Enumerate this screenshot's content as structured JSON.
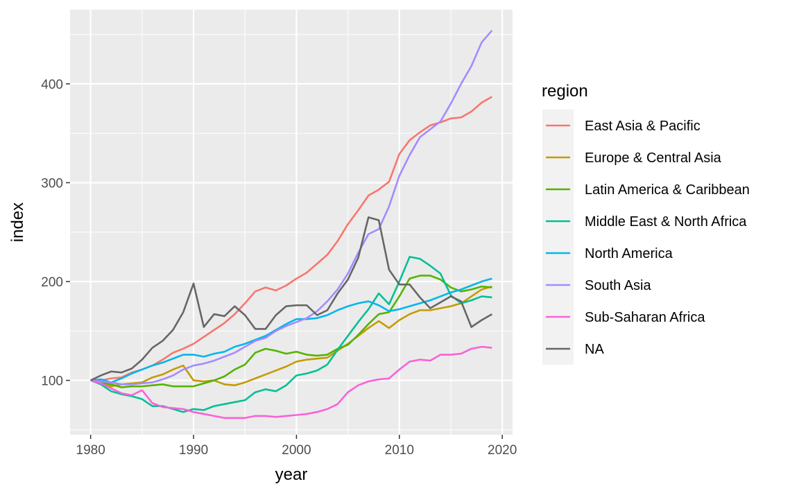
{
  "chart_data": {
    "type": "line",
    "xlabel": "year",
    "ylabel": "index",
    "xlim": [
      1978,
      2021
    ],
    "ylim": [
      45,
      475
    ],
    "x_ticks": [
      1980,
      1990,
      2000,
      2010,
      2020
    ],
    "y_ticks": [
      100,
      200,
      300,
      400
    ],
    "grid": true,
    "legend_title": "region",
    "legend_position": "right",
    "years": [
      1980,
      1981,
      1982,
      1983,
      1984,
      1985,
      1986,
      1987,
      1988,
      1989,
      1990,
      1991,
      1992,
      1993,
      1994,
      1995,
      1996,
      1997,
      1998,
      1999,
      2000,
      2001,
      2002,
      2003,
      2004,
      2005,
      2006,
      2007,
      2008,
      2009,
      2010,
      2011,
      2012,
      2013,
      2014,
      2015,
      2016,
      2017,
      2018,
      2019
    ],
    "series": [
      {
        "name": "East Asia & Pacific",
        "color": "#F8766D",
        "values": [
          100,
          100,
          102,
          103,
          108,
          111,
          115,
          121,
          128,
          132,
          137,
          144,
          151,
          158,
          167,
          178,
          190,
          194,
          191,
          196,
          203,
          209,
          218,
          227,
          241,
          258,
          272,
          287,
          293,
          301,
          329,
          343,
          351,
          358,
          361,
          365,
          366,
          372,
          381,
          387
        ]
      },
      {
        "name": "Europe & Central Asia",
        "color": "#C49A00",
        "values": [
          100,
          98,
          94,
          96,
          97,
          98,
          103,
          106,
          111,
          115,
          100,
          99,
          100,
          96,
          95,
          98,
          102,
          106,
          110,
          114,
          119,
          121,
          122,
          123,
          130,
          137,
          145,
          153,
          160,
          153,
          161,
          167,
          171,
          171,
          173,
          175,
          178,
          185,
          192,
          195
        ]
      },
      {
        "name": "Latin America & Caribbean",
        "color": "#53B400",
        "values": [
          100,
          98,
          96,
          93,
          94,
          94,
          95,
          96,
          94,
          94,
          94,
          97,
          100,
          104,
          111,
          116,
          128,
          132,
          130,
          127,
          129,
          126,
          125,
          126,
          132,
          136,
          146,
          157,
          167,
          169,
          185,
          203,
          206,
          206,
          202,
          194,
          190,
          192,
          195,
          194
        ]
      },
      {
        "name": "Middle East & North Africa",
        "color": "#00C094",
        "values": [
          100,
          96,
          89,
          86,
          84,
          81,
          74,
          74,
          71,
          68,
          71,
          70,
          74,
          76,
          78,
          80,
          88,
          91,
          89,
          95,
          105,
          107,
          110,
          116,
          131,
          145,
          159,
          172,
          188,
          177,
          200,
          225,
          223,
          216,
          208,
          186,
          178,
          181,
          185,
          184
        ]
      },
      {
        "name": "North America",
        "color": "#00B6EB",
        "values": [
          100,
          101,
          98,
          102,
          107,
          111,
          115,
          118,
          122,
          126,
          126,
          124,
          127,
          129,
          134,
          137,
          141,
          145,
          151,
          157,
          162,
          162,
          163,
          166,
          171,
          175,
          178,
          180,
          176,
          170,
          172,
          175,
          178,
          181,
          185,
          189,
          192,
          196,
          200,
          203
        ]
      },
      {
        "name": "South Asia",
        "color": "#A58AFF",
        "values": [
          100,
          99,
          98,
          96,
          96,
          97,
          98,
          101,
          105,
          111,
          115,
          117,
          120,
          124,
          128,
          134,
          140,
          143,
          150,
          155,
          159,
          163,
          170,
          180,
          192,
          208,
          229,
          248,
          253,
          276,
          307,
          328,
          346,
          354,
          362,
          380,
          400,
          418,
          442,
          454
        ]
      },
      {
        "name": "Sub-Saharan Africa",
        "color": "#FB61D7",
        "values": [
          100,
          97,
          92,
          87,
          85,
          90,
          77,
          73,
          72,
          71,
          68,
          66,
          64,
          62,
          62,
          62,
          64,
          64,
          63,
          64,
          65,
          66,
          68,
          71,
          76,
          88,
          95,
          99,
          101,
          102,
          111,
          119,
          121,
          120,
          126,
          126,
          127,
          132,
          134,
          133
        ]
      },
      {
        "name": "NA",
        "color": "#666666",
        "values": [
          100,
          105,
          109,
          108,
          112,
          121,
          133,
          140,
          151,
          169,
          198,
          154,
          167,
          165,
          175,
          166,
          152,
          152,
          166,
          175,
          176,
          176,
          166,
          171,
          188,
          202,
          224,
          265,
          262,
          212,
          197,
          197,
          184,
          173,
          179,
          185,
          180,
          154,
          161,
          167
        ]
      }
    ]
  }
}
